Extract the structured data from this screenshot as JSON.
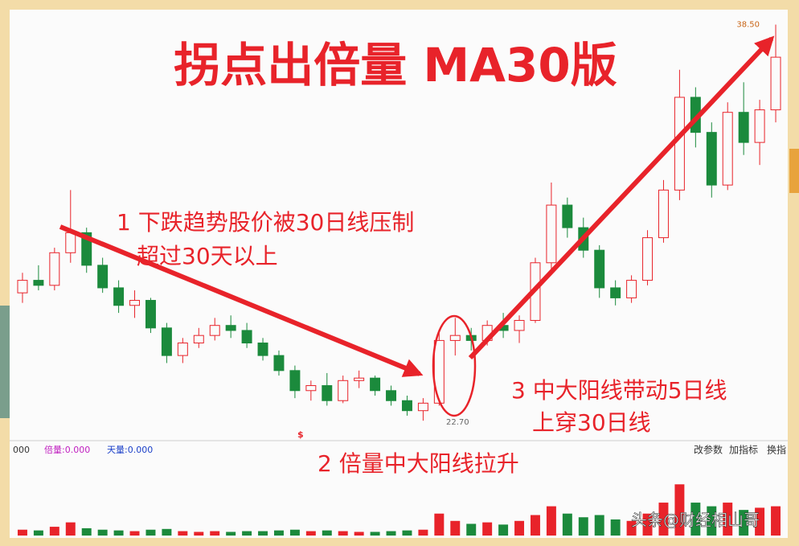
{
  "chart_data": {
    "type": "candlestick",
    "title": "拐点出倍量  MA30版",
    "annotations": [
      "1 下跌趋势股价被30日线压制",
      "超过30天以上",
      "2 倍量中大阳线拉升",
      "3 中大阳线带动5日线",
      "上穿30日线"
    ],
    "price_labels": [
      {
        "value": 38.5,
        "label": "38.50"
      },
      {
        "value": 22.7,
        "label": "22.70"
      }
    ],
    "signal_marker": "$",
    "indicator_bar": [
      "000",
      "倍量:0.000",
      "天量:0.000"
    ],
    "toolbar": [
      "改参数",
      "加指标",
      "换指"
    ],
    "watermark": "头条@财经相山哥",
    "ylim": [
      22,
      39
    ],
    "up_color": "#e8232a",
    "down_color": "#1b8a3c",
    "open": [
      27.8,
      28.3,
      28.1,
      29.4,
      30.2,
      28.9,
      28.0,
      27.3,
      27.5,
      26.4,
      25.3,
      25.8,
      26.1,
      26.5,
      26.3,
      25.8,
      25.3,
      24.7,
      23.9,
      24.1,
      23.5,
      24.3,
      24.4,
      23.9,
      23.5,
      23.1,
      23.4,
      25.9,
      26.1,
      25.9,
      26.5,
      26.3,
      26.7,
      29.0,
      31.3,
      30.4,
      29.5,
      28.0,
      27.6,
      28.3,
      30.0,
      31.9,
      35.6,
      34.2,
      32.1,
      35.0,
      33.8,
      35.1
    ],
    "high": [
      28.6,
      28.9,
      29.6,
      31.9,
      30.4,
      29.2,
      28.3,
      27.9,
      27.6,
      26.6,
      26.0,
      26.4,
      26.8,
      26.9,
      26.6,
      26.0,
      25.5,
      24.9,
      24.3,
      24.6,
      24.5,
      24.7,
      24.5,
      24.1,
      23.7,
      23.6,
      26.2,
      26.8,
      26.4,
      26.7,
      27.0,
      26.9,
      29.2,
      32.2,
      31.6,
      30.8,
      29.7,
      28.3,
      28.5,
      30.3,
      32.3,
      36.7,
      36.0,
      34.6,
      35.4,
      36.2,
      35.5,
      38.5
    ],
    "low": [
      27.4,
      27.9,
      27.9,
      29.0,
      28.6,
      27.8,
      27.0,
      26.8,
      26.2,
      25.0,
      25.0,
      25.6,
      25.9,
      26.0,
      25.6,
      25.1,
      24.5,
      23.6,
      23.5,
      23.3,
      23.4,
      24.0,
      23.7,
      23.3,
      22.9,
      22.7,
      23.3,
      25.3,
      25.5,
      25.7,
      26.0,
      25.8,
      26.6,
      28.7,
      30.0,
      29.2,
      27.6,
      27.3,
      27.4,
      28.1,
      29.8,
      31.5,
      33.6,
      31.6,
      31.9,
      33.3,
      32.9,
      34.6
    ],
    "close": [
      28.3,
      28.1,
      29.4,
      30.2,
      28.9,
      28.0,
      27.3,
      27.5,
      26.4,
      25.3,
      25.8,
      26.1,
      26.5,
      26.3,
      25.8,
      25.3,
      24.7,
      23.9,
      24.1,
      23.5,
      24.3,
      24.4,
      23.9,
      23.5,
      23.1,
      23.4,
      25.9,
      26.1,
      25.9,
      26.5,
      26.3,
      26.7,
      29.0,
      31.3,
      30.4,
      29.5,
      28.0,
      27.6,
      28.3,
      30.0,
      31.9,
      35.6,
      34.2,
      32.1,
      35.0,
      33.8,
      35.1,
      37.2
    ],
    "volume": [
      8,
      7,
      12,
      18,
      10,
      8,
      7,
      6,
      8,
      9,
      6,
      5,
      6,
      5,
      6,
      6,
      7,
      8,
      6,
      7,
      6,
      5,
      5,
      6,
      7,
      8,
      30,
      20,
      16,
      18,
      15,
      20,
      28,
      40,
      30,
      25,
      28,
      22,
      20,
      30,
      45,
      70,
      45,
      40,
      45,
      35,
      38,
      40
    ],
    "vlim": [
      0,
      100
    ]
  }
}
